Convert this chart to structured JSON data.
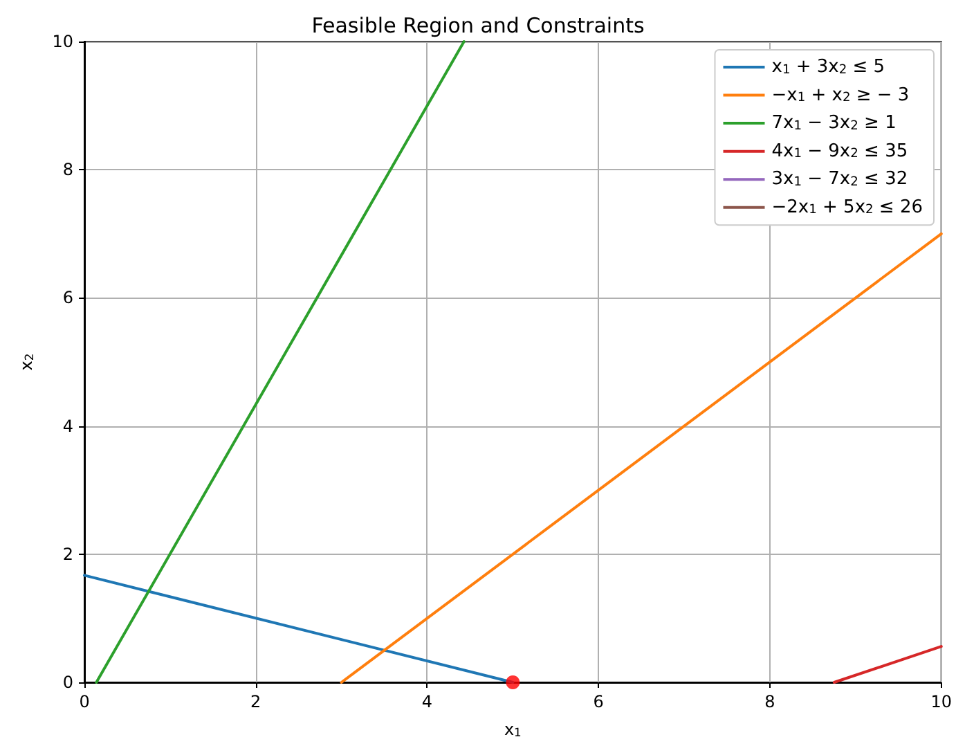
{
  "chart_data": {
    "type": "line",
    "title": "Feasible Region and Constraints",
    "xlabel": "x$_{1}$",
    "ylabel": "x$_{2}$",
    "xlim": [
      0,
      10
    ],
    "ylim": [
      0,
      10
    ],
    "xticks": [
      0,
      2,
      4,
      6,
      8,
      10
    ],
    "yticks": [
      0,
      2,
      4,
      6,
      8,
      10
    ],
    "grid": true,
    "legend": "top right",
    "marker": "none",
    "line_style": "solid",
    "series": [
      {
        "name": "x$_{1}$ + 3x$_{2}$ ≤ 5",
        "color": "#1f77b4",
        "x": [
          0,
          5
        ],
        "values": [
          1.67,
          0
        ]
      },
      {
        "name": "−x$_{1}$ + x$_{2}$ ≥ − 3",
        "color": "#ff7f0e",
        "x": [
          3,
          10
        ],
        "values": [
          0,
          7
        ]
      },
      {
        "name": "7x$_{1}$ − 3x$_{2}$ ≥ 1",
        "color": "#2ca02c",
        "x": [
          0.14,
          4.43
        ],
        "values": [
          0,
          10
        ]
      },
      {
        "name": "4x$_{1}$ − 9x$_{2}$ ≤ 35",
        "color": "#d62728",
        "x": [
          8.75,
          10
        ],
        "values": [
          0,
          0.56
        ]
      },
      {
        "name": "3x$_{1}$ − 7x$_{2}$ ≤ 32",
        "color": "#9467bd"
      },
      {
        "name": "−2x$_{1}$ + 5x$_{2}$ ≤ 26",
        "color": "#8c564b"
      },
      {
        "type": "scatter",
        "color": "#ff0000",
        "marker": "circle",
        "x": [
          5
        ],
        "values": [
          0
        ]
      }
    ]
  }
}
